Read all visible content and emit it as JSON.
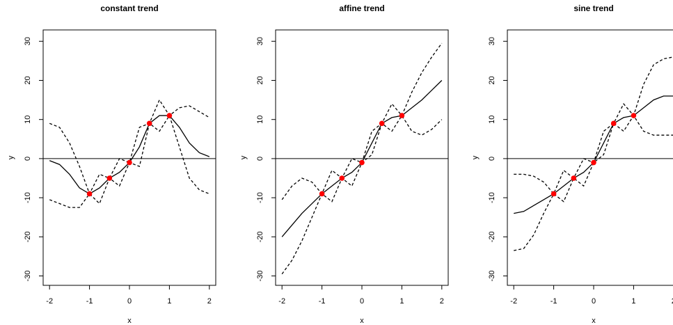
{
  "chart_data": [
    {
      "type": "line",
      "title": "constant trend",
      "xlabel": "x",
      "ylabel": "y",
      "xlim": [
        -2.16,
        2.16
      ],
      "ylim": [
        -32.4,
        32.9
      ],
      "xticks": [
        -2,
        -1,
        0,
        1,
        2
      ],
      "yticks": [
        -30,
        -20,
        -10,
        0,
        10,
        20,
        30
      ],
      "hline": 0,
      "x": [
        -2,
        -1.75,
        -1.5,
        -1.25,
        -1,
        -0.75,
        -0.5,
        -0.25,
        0,
        0.25,
        0.5,
        0.75,
        1,
        1.25,
        1.5,
        1.75,
        2
      ],
      "series": [
        {
          "color": "#000000",
          "dash": "solid",
          "values": [
            -0.5,
            -1.5,
            -4,
            -7.5,
            -9,
            -7.5,
            -5,
            -3.5,
            -1,
            3,
            9,
            11,
            11,
            8,
            4,
            1.5,
            0.5
          ]
        },
        {
          "color": "#000000",
          "dash": "dashed",
          "values": [
            9,
            8,
            4,
            -2,
            -9,
            -4,
            -5,
            0,
            -1,
            8,
            9,
            15,
            11,
            13,
            13.5,
            12,
            10.5
          ]
        },
        {
          "color": "#000000",
          "dash": "dashed",
          "values": [
            -10.5,
            -11.5,
            -12.5,
            -12.5,
            -9,
            -11.5,
            -5,
            -7,
            -1,
            -2,
            9,
            7,
            11,
            3,
            -5,
            -8,
            -9
          ]
        }
      ],
      "points": {
        "color": "#ff0000",
        "x": [
          -1,
          -0.5,
          0,
          0.5,
          1
        ],
        "values": [
          -9,
          -5,
          -1,
          9,
          11
        ]
      }
    },
    {
      "type": "line",
      "title": "affine trend",
      "xlabel": "x",
      "ylabel": "y",
      "xlim": [
        -2.16,
        2.16
      ],
      "ylim": [
        -32.4,
        32.9
      ],
      "xticks": [
        -2,
        -1,
        0,
        1,
        2
      ],
      "yticks": [
        -30,
        -20,
        -10,
        0,
        10,
        20,
        30
      ],
      "hline": 0,
      "x": [
        -2,
        -1.75,
        -1.5,
        -1.25,
        -1,
        -0.75,
        -0.5,
        -0.25,
        0,
        0.25,
        0.5,
        0.75,
        1,
        1.25,
        1.5,
        1.75,
        2
      ],
      "series": [
        {
          "color": "#000000",
          "dash": "solid",
          "values": [
            -20,
            -17,
            -14,
            -11.5,
            -9,
            -7,
            -5,
            -3.5,
            -1,
            4,
            9,
            10.5,
            11,
            13,
            15,
            17.5,
            20
          ]
        },
        {
          "color": "#000000",
          "dash": "dashed",
          "values": [
            -10.5,
            -7,
            -5,
            -6,
            -9,
            -3,
            -5,
            0,
            -1,
            7,
            9,
            14,
            11,
            17,
            22,
            26,
            29.5
          ]
        },
        {
          "color": "#000000",
          "dash": "dashed",
          "values": [
            -29.5,
            -26,
            -21,
            -15,
            -9,
            -11,
            -5,
            -7,
            -1,
            1,
            9,
            7,
            11,
            7,
            6,
            7.5,
            10
          ]
        }
      ],
      "points": {
        "color": "#ff0000",
        "x": [
          -1,
          -0.5,
          0,
          0.5,
          1
        ],
        "values": [
          -9,
          -5,
          -1,
          9,
          11
        ]
      }
    },
    {
      "type": "line",
      "title": "sine trend",
      "xlabel": "x",
      "ylabel": "y",
      "xlim": [
        -2.16,
        2.16
      ],
      "ylim": [
        -32.4,
        32.9
      ],
      "xticks": [
        -2,
        -1,
        0,
        1,
        2
      ],
      "yticks": [
        -30,
        -20,
        -10,
        0,
        10,
        20,
        30
      ],
      "hline": 0,
      "x": [
        -2,
        -1.75,
        -1.5,
        -1.25,
        -1,
        -0.75,
        -0.5,
        -0.25,
        0,
        0.25,
        0.5,
        0.75,
        1,
        1.25,
        1.5,
        1.75,
        2
      ],
      "series": [
        {
          "color": "#000000",
          "dash": "solid",
          "values": [
            -14,
            -13.5,
            -12,
            -10.5,
            -9,
            -7,
            -5,
            -3.5,
            -1,
            4,
            9,
            10.5,
            11,
            13,
            15,
            16,
            16
          ]
        },
        {
          "color": "#000000",
          "dash": "dashed",
          "values": [
            -4,
            -4,
            -4.5,
            -6,
            -9,
            -3,
            -5,
            0,
            -1,
            7,
            9,
            14,
            11,
            19,
            24,
            25.5,
            26
          ]
        },
        {
          "color": "#000000",
          "dash": "dashed",
          "values": [
            -23.5,
            -23,
            -19.5,
            -14,
            -9,
            -11,
            -5,
            -7,
            -1,
            1,
            9,
            7,
            11,
            7,
            6,
            6,
            6
          ]
        }
      ],
      "points": {
        "color": "#ff0000",
        "x": [
          -1,
          -0.5,
          0,
          0.5,
          1
        ],
        "values": [
          -9,
          -5,
          -1,
          9,
          11
        ]
      }
    }
  ]
}
